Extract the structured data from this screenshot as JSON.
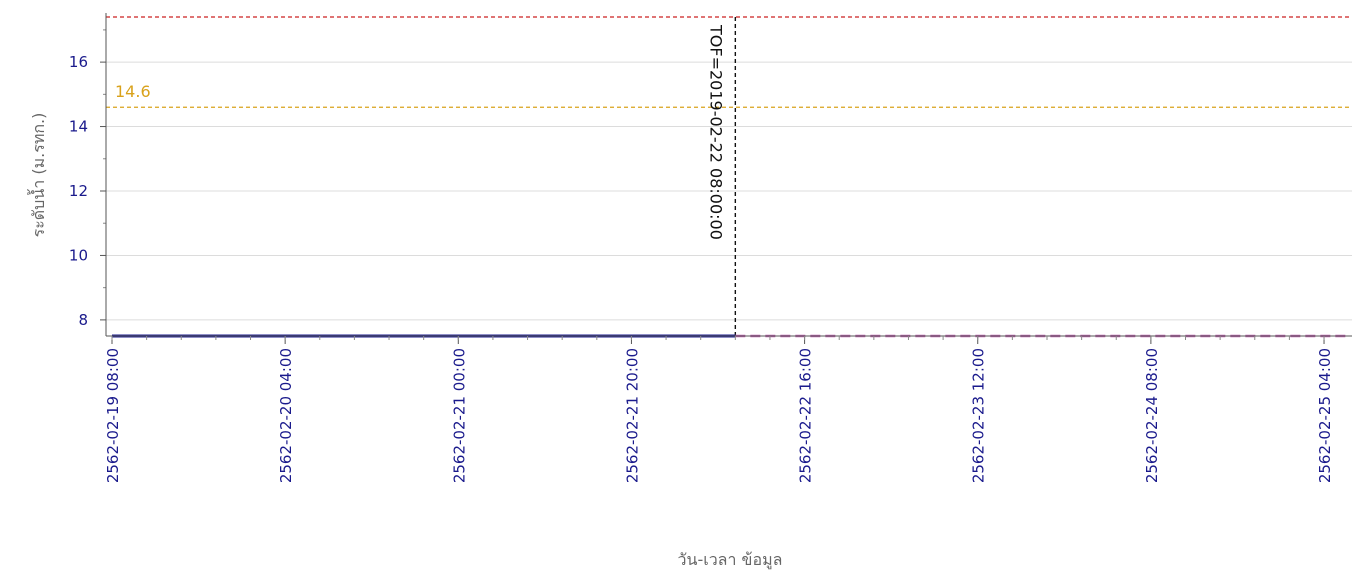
{
  "chart_data": {
    "type": "line",
    "title": "",
    "xlabel": "วัน-เวลา ข้อมูล",
    "ylabel": "ระดับน้ำ (ม.รทก.)",
    "ylim": [
      7.5,
      17.4
    ],
    "y_ticks": [
      8,
      10,
      12,
      14,
      16
    ],
    "x_range": [
      "2562-02-19 08:00",
      "2562-02-25 07:00"
    ],
    "x_ticks": [
      "2562-02-19 08:00",
      "2562-02-20 04:00",
      "2562-02-21 00:00",
      "2562-02-21 20:00",
      "2562-02-22 16:00",
      "2562-02-23 12:00",
      "2562-02-24 08:00",
      "2562-02-25 04:00"
    ],
    "grid": true,
    "series": [
      {
        "role": "observed",
        "color": "#1f1f8f",
        "style": "solid",
        "x": [
          "2562-02-19 08:00",
          "2562-02-22 08:00"
        ],
        "y": [
          7.5,
          7.5
        ]
      },
      {
        "role": "forecast",
        "color": "#c060b0",
        "style": "dashed",
        "x": [
          "2562-02-22 08:00",
          "2562-02-25 07:00"
        ],
        "y": [
          7.5,
          7.5
        ]
      }
    ],
    "reference_lines": [
      {
        "label": "",
        "y": 17.4,
        "color": "#cc2222",
        "style": "dashed"
      },
      {
        "label": "14.6",
        "y": 14.6,
        "color": "#d9a21b",
        "style": "dashed"
      }
    ],
    "tof": {
      "label": "TOF=2019-02-22 08:00:00",
      "x": "2562-02-22 08:00",
      "color": "#111111",
      "style": "dashed"
    }
  }
}
